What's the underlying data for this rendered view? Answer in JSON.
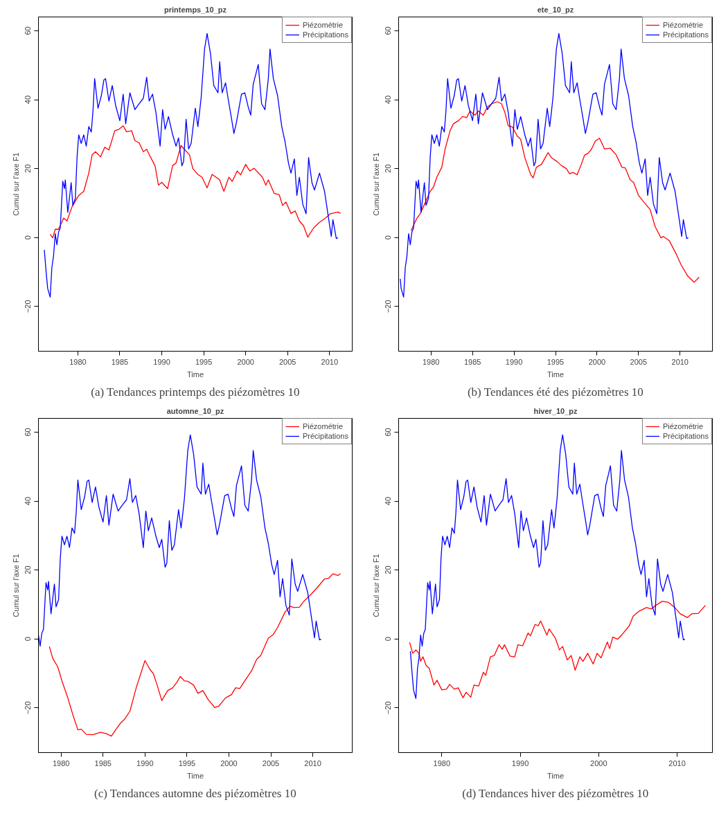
{
  "chart_data": [
    {
      "type": "line",
      "title": "printemps_10_pz",
      "xlabel": "Time",
      "ylabel": "Cumul sur l'axe F1",
      "xlim": [
        1975.3,
        2012.7
      ],
      "ylim": [
        -33,
        64
      ],
      "xticks": [
        1980,
        1985,
        1990,
        1995,
        2000,
        2005,
        2010
      ],
      "yticks": [
        -20,
        0,
        20,
        40,
        60
      ],
      "legend": "top right",
      "annotations": [
        "(a) Tendances printemps des piézomètres 10"
      ],
      "series": [
        {
          "name": "Piézométrie",
          "color": "#ff0000",
          "x": [
            1976.7,
            1977.0,
            1977.3,
            1977.7,
            1978.3,
            1978.7,
            1979.3,
            1980.1,
            1980.7,
            1981.3,
            1981.7,
            1982.1,
            1982.7,
            1983.2,
            1983.7,
            1984.4,
            1984.9,
            1985.4,
            1985.8,
            1986.4,
            1986.8,
            1987.3,
            1987.8,
            1988.2,
            1988.6,
            1989.2,
            1989.6,
            1990.0,
            1990.7,
            1991.3,
            1991.7,
            1992.3,
            1992.8,
            1993.3,
            1993.7,
            1994.3,
            1994.8,
            1995.4,
            1996.0,
            1996.7,
            1996.9,
            1997.4,
            1998.0,
            1998.4,
            1999.0,
            1999.4,
            2000.0,
            2000.5,
            2001.0,
            2001.6,
            2002.0,
            2002.4,
            2002.7,
            2003.4,
            2004.0,
            2004.4,
            2004.8,
            2005.4,
            2005.9,
            2006.4,
            2006.9,
            2007.4,
            2008.1,
            2008.8,
            2009.5,
            2010.1,
            2011.0,
            2011.3
          ],
          "values": [
            0.9,
            -0.1,
            2.4,
            2.4,
            5.6,
            4.8,
            8.9,
            12.2,
            13.4,
            18.7,
            24.0,
            24.9,
            23.4,
            26.2,
            25.4,
            31.0,
            31.4,
            32.4,
            30.7,
            31.0,
            28.1,
            27.5,
            24.9,
            25.6,
            23.6,
            20.8,
            15.2,
            16.0,
            14.2,
            20.9,
            21.6,
            26.7,
            25.3,
            24.0,
            20.0,
            18.3,
            17.5,
            14.4,
            18.3,
            17.1,
            16.7,
            13.4,
            17.5,
            16.3,
            19.3,
            18.2,
            21.2,
            19.3,
            20.1,
            18.5,
            17.5,
            15.2,
            16.7,
            12.8,
            12.4,
            9.3,
            10.3,
            7.0,
            7.7,
            4.8,
            3.4,
            0.1,
            2.8,
            4.4,
            5.6,
            6.9,
            7.4,
            7.0
          ]
        },
        {
          "name": "Précipitations",
          "color": "#0000ff",
          "x": [
            1976.0,
            1976.2,
            1976.4,
            1976.7,
            1976.9,
            1977.1,
            1977.3,
            1977.5,
            1977.7,
            1977.9,
            1978.2,
            1978.4,
            1978.5,
            1978.8,
            1979.2,
            1979.4,
            1979.7,
            1979.9,
            1980.1,
            1980.4,
            1980.7,
            1981.0,
            1981.3,
            1981.6,
            1981.8,
            1982.0,
            1982.4,
            1982.8,
            1983.1,
            1983.3,
            1983.7,
            1984.1,
            1984.5,
            1985.0,
            1985.4,
            1985.7,
            1986.2,
            1986.8,
            1987.3,
            1987.8,
            1988.2,
            1988.5,
            1988.9,
            1989.3,
            1989.8,
            1990.1,
            1990.4,
            1990.8,
            1991.3,
            1991.7,
            1992.0,
            1992.4,
            1992.6,
            1992.9,
            1993.2,
            1993.5,
            1994.0,
            1994.3,
            1994.5,
            1994.7,
            1995.1,
            1995.4,
            1995.8,
            1996.2,
            1996.7,
            1996.9,
            1997.2,
            1997.6,
            1997.9,
            1998.3,
            1998.6,
            1998.9,
            1999.2,
            1999.5,
            1999.9,
            2000.3,
            2000.6,
            2000.9,
            2001.2,
            2001.5,
            2001.9,
            2002.3,
            2002.7,
            2002.9,
            2003.3,
            2003.8,
            2004.3,
            2004.7,
            2005.1,
            2005.4,
            2005.8,
            2006.1,
            2006.4,
            2006.8,
            2007.2,
            2007.5,
            2007.9,
            2008.2,
            2008.8,
            2009.4,
            2009.8,
            2010.2,
            2010.4,
            2010.8,
            2011.0
          ],
          "values": [
            -3.6,
            -9.5,
            -14.8,
            -17.3,
            -8.7,
            -5.4,
            1.1,
            -2.1,
            1.6,
            2.8,
            16.3,
            14.2,
            16.7,
            7.3,
            15.9,
            9.3,
            11.4,
            23.2,
            29.8,
            27.3,
            29.8,
            26.5,
            32.2,
            30.6,
            36.7,
            46.1,
            37.5,
            41.2,
            45.7,
            46.1,
            39.6,
            44.1,
            38.3,
            33.9,
            41.6,
            33.0,
            42.0,
            37.1,
            38.8,
            40.4,
            46.5,
            39.6,
            41.6,
            36.3,
            26.5,
            37.1,
            31.4,
            35.1,
            29.8,
            26.5,
            28.9,
            20.8,
            22.0,
            34.3,
            25.7,
            27.3,
            37.5,
            32.2,
            36.3,
            40.8,
            54.7,
            59.2,
            53.5,
            44.1,
            42.0,
            51.0,
            42.0,
            44.9,
            40.4,
            34.7,
            30.2,
            33.4,
            37.5,
            41.6,
            42.0,
            37.9,
            35.5,
            44.5,
            47.3,
            50.2,
            38.8,
            37.1,
            46.1,
            54.7,
            46.1,
            41.2,
            32.2,
            27.7,
            21.6,
            18.7,
            22.8,
            12.2,
            17.5,
            9.7,
            6.9,
            23.2,
            15.9,
            13.8,
            18.7,
            13.4,
            6.9,
            0.3,
            5.2,
            -0.3,
            -0.1
          ]
        }
      ]
    },
    {
      "type": "line",
      "title": "ete_10_pz",
      "xlabel": "Time",
      "ylabel": "Cumul sur l'axe F1",
      "xlim": [
        1976.1,
        2013.9
      ],
      "ylim": [
        -33,
        64
      ],
      "xticks": [
        1980,
        1985,
        1990,
        1995,
        2000,
        2005,
        2010
      ],
      "yticks": [
        -20,
        0,
        20,
        40,
        60
      ],
      "legend": "top right",
      "annotations": [
        "(b) Tendances été des piézomètres 10"
      ],
      "series": [
        {
          "name": "Piézométrie",
          "color": "#ff0000",
          "x": [
            1977.6,
            1978.3,
            1978.7,
            1979.3,
            1979.9,
            1980.3,
            1980.7,
            1981.3,
            1981.7,
            1982.3,
            1982.7,
            1983.3,
            1983.8,
            1984.3,
            1984.7,
            1985.3,
            1985.7,
            1986.3,
            1986.8,
            1987.3,
            1988.0,
            1988.5,
            1988.9,
            1989.3,
            1989.8,
            1990.4,
            1990.8,
            1991.3,
            1992.0,
            1992.3,
            1992.7,
            1993.3,
            1994.1,
            1994.5,
            1995.2,
            1995.7,
            1996.3,
            1996.7,
            1997.1,
            1997.6,
            1998.1,
            1998.5,
            1998.9,
            1999.3,
            1999.8,
            2000.3,
            2000.9,
            2001.6,
            2002.3,
            2003.0,
            2003.4,
            2004.0,
            2004.4,
            2005.0,
            2005.7,
            2006.4,
            2007.0,
            2007.7,
            2008.0,
            2008.7,
            2009.5,
            2010.1,
            2010.9,
            2011.7,
            2012.3
          ],
          "values": [
            2.0,
            5.6,
            6.9,
            10.1,
            13.4,
            14.6,
            17.5,
            20.4,
            25.7,
            31.0,
            33.0,
            33.9,
            35.1,
            34.8,
            36.7,
            35.5,
            36.7,
            35.5,
            37.9,
            38.8,
            39.4,
            38.8,
            36.3,
            32.4,
            32.1,
            29.4,
            28.5,
            23.2,
            18.3,
            17.3,
            20.4,
            21.2,
            24.6,
            23.2,
            22.0,
            20.9,
            20.0,
            18.5,
            18.9,
            18.2,
            21.2,
            23.9,
            24.4,
            25.5,
            28.0,
            28.8,
            25.7,
            25.9,
            24.0,
            20.4,
            20.2,
            16.7,
            16.0,
            12.2,
            10.1,
            8.1,
            3.2,
            -0.1,
            0.3,
            -0.9,
            -4.6,
            -7.8,
            -11.1,
            -13.0,
            -11.5
          ]
        },
        {
          "name": "Précipitations",
          "color": "#0000ff",
          "x": [
            1976.3,
            1976.4,
            1976.7,
            1976.9,
            1977.1,
            1977.3,
            1977.5,
            1977.7,
            1977.9,
            1978.2,
            1978.4,
            1978.5,
            1978.8,
            1979.2,
            1979.4,
            1979.7,
            1979.9,
            1980.1,
            1980.4,
            1980.7,
            1981.0,
            1981.3,
            1981.6,
            1981.8,
            1982.0,
            1982.4,
            1982.8,
            1983.1,
            1983.3,
            1983.7,
            1984.1,
            1984.5,
            1985.0,
            1985.4,
            1985.7,
            1986.2,
            1986.8,
            1987.3,
            1987.8,
            1988.2,
            1988.5,
            1988.9,
            1989.3,
            1989.8,
            1990.1,
            1990.4,
            1990.8,
            1991.3,
            1991.7,
            1992.0,
            1992.4,
            1992.6,
            1992.9,
            1993.2,
            1993.5,
            1994.0,
            1994.3,
            1994.5,
            1994.7,
            1995.1,
            1995.4,
            1995.8,
            1996.2,
            1996.7,
            1996.9,
            1997.2,
            1997.6,
            1997.9,
            1998.3,
            1998.6,
            1998.9,
            1999.2,
            1999.5,
            1999.9,
            2000.3,
            2000.6,
            2000.9,
            2001.2,
            2001.5,
            2001.9,
            2002.3,
            2002.7,
            2002.9,
            2003.3,
            2003.8,
            2004.3,
            2004.7,
            2005.1,
            2005.4,
            2005.8,
            2006.1,
            2006.4,
            2006.8,
            2007.2,
            2007.5,
            2007.9,
            2008.2,
            2008.8,
            2009.4,
            2009.8,
            2010.2,
            2010.4,
            2010.8,
            2011.0
          ],
          "values": [
            -12.0,
            -14.8,
            -17.3,
            -8.7,
            -5.4,
            1.1,
            -2.1,
            1.6,
            2.8,
            16.3,
            14.2,
            16.7,
            7.3,
            15.9,
            9.3,
            11.4,
            23.2,
            29.8,
            27.3,
            29.8,
            26.5,
            32.2,
            30.6,
            36.7,
            46.1,
            37.5,
            41.2,
            45.7,
            46.1,
            39.6,
            44.1,
            38.3,
            33.9,
            41.6,
            33.0,
            42.0,
            37.1,
            38.8,
            40.4,
            46.5,
            39.6,
            41.6,
            36.3,
            26.5,
            37.1,
            31.4,
            35.1,
            29.8,
            26.5,
            28.9,
            20.8,
            22.0,
            34.3,
            25.7,
            27.3,
            37.5,
            32.2,
            36.3,
            40.8,
            54.7,
            59.2,
            53.5,
            44.1,
            42.0,
            51.0,
            42.0,
            44.9,
            40.4,
            34.7,
            30.2,
            33.4,
            37.5,
            41.6,
            42.0,
            37.9,
            35.5,
            44.5,
            47.3,
            50.2,
            38.8,
            37.1,
            46.1,
            54.7,
            46.1,
            41.2,
            32.2,
            27.7,
            21.6,
            18.7,
            22.8,
            12.2,
            17.5,
            9.7,
            6.9,
            23.2,
            15.9,
            13.8,
            18.7,
            13.4,
            6.9,
            0.3,
            5.2,
            -0.3,
            -0.1
          ]
        }
      ]
    },
    {
      "type": "line",
      "title": "automne_10_pz",
      "xlabel": "Time",
      "ylabel": "Cumul sur l'axe F1",
      "xlim": [
        1977.3,
        2014.7
      ],
      "ylim": [
        -33,
        64
      ],
      "xticks": [
        1980,
        1985,
        1990,
        1995,
        2000,
        2005,
        2010
      ],
      "yticks": [
        -20,
        0,
        20,
        40,
        60
      ],
      "legend": "top right",
      "annotations": [
        "(c) Tendances automne des piézomètres 10"
      ],
      "series": [
        {
          "name": "Piézométrie",
          "color": "#ff0000",
          "x": [
            1978.6,
            1979.0,
            1979.6,
            1980.1,
            1980.8,
            1981.4,
            1982.0,
            1982.4,
            1983.0,
            1983.8,
            1984.7,
            1985.4,
            1986.0,
            1986.5,
            1987.1,
            1987.6,
            1988.2,
            1989.0,
            1990.0,
            1990.6,
            1991.0,
            1991.5,
            1992.0,
            1992.7,
            1993.3,
            1993.8,
            1994.2,
            1994.7,
            1995.1,
            1995.8,
            1996.3,
            1996.9,
            1997.5,
            1998.3,
            1998.8,
            1999.6,
            2000.3,
            2000.8,
            2001.3,
            2002.0,
            2002.7,
            2003.3,
            2003.8,
            2004.7,
            2005.3,
            2005.8,
            2006.7,
            2007.3,
            2007.7,
            2008.4,
            2009.0,
            2009.7,
            2010.5,
            2011.4,
            2011.9,
            2012.4,
            2013.0,
            2013.3
          ],
          "values": [
            -2.2,
            -5.6,
            -8.1,
            -12.2,
            -17.1,
            -22.0,
            -26.4,
            -26.2,
            -27.7,
            -27.8,
            -27.1,
            -27.5,
            -28.2,
            -26.4,
            -24.4,
            -23.2,
            -21.0,
            -13.8,
            -6.3,
            -8.9,
            -10.1,
            -13.8,
            -17.9,
            -15.0,
            -14.2,
            -12.6,
            -10.9,
            -12.2,
            -12.3,
            -13.4,
            -15.8,
            -15.0,
            -17.5,
            -19.9,
            -19.5,
            -17.1,
            -16.2,
            -14.2,
            -14.4,
            -11.8,
            -9.3,
            -6.0,
            -4.8,
            0.2,
            1.3,
            3.3,
            7.8,
            9.5,
            9.1,
            9.2,
            11.1,
            12.7,
            14.8,
            17.4,
            17.6,
            18.9,
            18.4,
            18.9
          ]
        },
        {
          "name": "Précipitations",
          "color": "#0000ff",
          "x": [
            1977.3,
            1977.5,
            1977.7,
            1977.9,
            1978.2,
            1978.4,
            1978.5,
            1978.8,
            1979.2,
            1979.4,
            1979.7,
            1979.9,
            1980.1,
            1980.4,
            1980.7,
            1981.0,
            1981.3,
            1981.6,
            1981.8,
            1982.0,
            1982.4,
            1982.8,
            1983.1,
            1983.3,
            1983.7,
            1984.1,
            1984.5,
            1985.0,
            1985.4,
            1985.7,
            1986.2,
            1986.8,
            1987.3,
            1987.8,
            1988.2,
            1988.5,
            1988.9,
            1989.3,
            1989.8,
            1990.1,
            1990.4,
            1990.8,
            1991.3,
            1991.7,
            1992.0,
            1992.4,
            1992.6,
            1992.9,
            1993.2,
            1993.5,
            1994.0,
            1994.3,
            1994.5,
            1994.7,
            1995.1,
            1995.4,
            1995.8,
            1996.2,
            1996.7,
            1996.9,
            1997.2,
            1997.6,
            1997.9,
            1998.3,
            1998.6,
            1998.9,
            1999.2,
            1999.5,
            1999.9,
            2000.3,
            2000.6,
            2000.9,
            2001.2,
            2001.5,
            2001.9,
            2002.3,
            2002.7,
            2002.9,
            2003.3,
            2003.8,
            2004.3,
            2004.7,
            2005.1,
            2005.4,
            2005.8,
            2006.1,
            2006.4,
            2006.8,
            2007.2,
            2007.5,
            2007.9,
            2008.2,
            2008.8,
            2009.4,
            2009.8,
            2010.2,
            2010.4,
            2010.8,
            2011.0
          ],
          "values": [
            1.1,
            -2.1,
            1.6,
            2.8,
            16.3,
            14.2,
            16.7,
            7.3,
            15.9,
            9.3,
            11.4,
            23.2,
            29.8,
            27.3,
            29.8,
            26.5,
            32.2,
            30.6,
            36.7,
            46.1,
            37.5,
            41.2,
            45.7,
            46.1,
            39.6,
            44.1,
            38.3,
            33.9,
            41.6,
            33.0,
            42.0,
            37.1,
            38.8,
            40.4,
            46.5,
            39.6,
            41.6,
            36.3,
            26.5,
            37.1,
            31.4,
            35.1,
            29.8,
            26.5,
            28.9,
            20.8,
            22.0,
            34.3,
            25.7,
            27.3,
            37.5,
            32.2,
            36.3,
            40.8,
            54.7,
            59.2,
            53.5,
            44.1,
            42.0,
            51.0,
            42.0,
            44.9,
            40.4,
            34.7,
            30.2,
            33.4,
            37.5,
            41.6,
            42.0,
            37.9,
            35.5,
            44.5,
            47.3,
            50.2,
            38.8,
            37.1,
            46.1,
            54.7,
            46.1,
            41.2,
            32.2,
            27.7,
            21.6,
            18.7,
            22.8,
            12.2,
            17.5,
            9.7,
            6.9,
            23.2,
            15.9,
            13.8,
            18.7,
            13.4,
            6.9,
            0.3,
            5.2,
            -0.3,
            -0.1
          ]
        }
      ]
    },
    {
      "type": "line",
      "title": "hiver_10_pz",
      "xlabel": "Time",
      "ylabel": "Cumul sur l'axe F1",
      "xlim": [
        1974.5,
        2014.5
      ],
      "ylim": [
        -33,
        64
      ],
      "xticks": [
        1980,
        1990,
        2000,
        2010
      ],
      "yticks": [
        -20,
        0,
        20,
        40,
        60
      ],
      "legend": "top right",
      "annotations": [
        "(d) Tendances hiver des piézomètres 10"
      ],
      "series": [
        {
          "name": "Piézométrie",
          "color": "#ff0000",
          "x": [
            1975.9,
            1976.3,
            1976.7,
            1977.1,
            1977.3,
            1977.6,
            1978.0,
            1978.4,
            1979.0,
            1979.4,
            1980.0,
            1980.6,
            1981.0,
            1981.6,
            1982.1,
            1982.7,
            1983.1,
            1983.7,
            1984.1,
            1984.7,
            1985.3,
            1985.6,
            1986.2,
            1986.7,
            1987.3,
            1987.7,
            1988.0,
            1988.7,
            1989.3,
            1989.7,
            1990.3,
            1991.0,
            1991.3,
            1991.9,
            1992.3,
            1992.6,
            1993.4,
            1993.7,
            1994.5,
            1995.0,
            1995.4,
            1996.0,
            1996.5,
            1997.0,
            1997.6,
            1998.0,
            1998.6,
            1999.3,
            1999.8,
            2000.3,
            2001.1,
            2001.4,
            2001.8,
            2002.4,
            2003.0,
            2003.9,
            2004.4,
            2005.2,
            2006.1,
            2006.7,
            2007.4,
            2008.1,
            2008.9,
            2009.7,
            2010.4,
            2011.3,
            2011.9,
            2012.7,
            2013.6
          ],
          "values": [
            -1.0,
            -4.2,
            -3.2,
            -4.2,
            -6.5,
            -5.2,
            -7.7,
            -8.5,
            -13.4,
            -12.0,
            -14.8,
            -14.6,
            -13.2,
            -14.6,
            -14.2,
            -17.1,
            -15.5,
            -16.9,
            -13.4,
            -13.7,
            -9.7,
            -10.6,
            -5.2,
            -4.8,
            -1.7,
            -3.0,
            -1.7,
            -5.0,
            -5.2,
            -1.7,
            -2.0,
            1.7,
            0.9,
            4.2,
            3.8,
            5.2,
            1.1,
            2.9,
            0.1,
            -3.2,
            -2.2,
            -6.1,
            -4.8,
            -9.1,
            -5.2,
            -6.5,
            -4.2,
            -7.3,
            -4.2,
            -5.5,
            -0.9,
            -2.8,
            0.5,
            -0.1,
            1.3,
            3.8,
            6.6,
            8.1,
            9.1,
            8.7,
            9.9,
            10.9,
            10.6,
            9.1,
            7.3,
            6.2,
            7.3,
            7.4,
            9.7
          ]
        },
        {
          "name": "Précipitations",
          "color": "#0000ff",
          "x": [
            1976.0,
            1976.2,
            1976.4,
            1976.7,
            1976.9,
            1977.1,
            1977.3,
            1977.5,
            1977.7,
            1977.9,
            1978.2,
            1978.4,
            1978.5,
            1978.8,
            1979.2,
            1979.4,
            1979.7,
            1979.9,
            1980.1,
            1980.4,
            1980.7,
            1981.0,
            1981.3,
            1981.6,
            1981.8,
            1982.0,
            1982.4,
            1982.8,
            1983.1,
            1983.3,
            1983.7,
            1984.1,
            1984.5,
            1985.0,
            1985.4,
            1985.7,
            1986.2,
            1986.8,
            1987.3,
            1987.8,
            1988.2,
            1988.5,
            1988.9,
            1989.3,
            1989.8,
            1990.1,
            1990.4,
            1990.8,
            1991.3,
            1991.7,
            1992.0,
            1992.4,
            1992.6,
            1992.9,
            1993.2,
            1993.5,
            1994.0,
            1994.3,
            1994.5,
            1994.7,
            1995.1,
            1995.4,
            1995.8,
            1996.2,
            1996.7,
            1996.9,
            1997.2,
            1997.6,
            1997.9,
            1998.3,
            1998.6,
            1998.9,
            1999.2,
            1999.5,
            1999.9,
            2000.3,
            2000.6,
            2000.9,
            2001.2,
            2001.5,
            2001.9,
            2002.3,
            2002.7,
            2002.9,
            2003.3,
            2003.8,
            2004.3,
            2004.7,
            2005.1,
            2005.4,
            2005.8,
            2006.1,
            2006.4,
            2006.8,
            2007.2,
            2007.5,
            2007.9,
            2008.2,
            2008.8,
            2009.4,
            2009.8,
            2010.2,
            2010.4,
            2010.8,
            2011.0
          ],
          "values": [
            -3.6,
            -9.5,
            -14.8,
            -17.3,
            -8.7,
            -5.4,
            1.1,
            -2.1,
            1.6,
            2.8,
            16.3,
            14.2,
            16.7,
            7.3,
            15.9,
            9.3,
            11.4,
            23.2,
            29.8,
            27.3,
            29.8,
            26.5,
            32.2,
            30.6,
            36.7,
            46.1,
            37.5,
            41.2,
            45.7,
            46.1,
            39.6,
            44.1,
            38.3,
            33.9,
            41.6,
            33.0,
            42.0,
            37.1,
            38.8,
            40.4,
            46.5,
            39.6,
            41.6,
            36.3,
            26.5,
            37.1,
            31.4,
            35.1,
            29.8,
            26.5,
            28.9,
            20.8,
            22.0,
            34.3,
            25.7,
            27.3,
            37.5,
            32.2,
            36.3,
            40.8,
            54.7,
            59.2,
            53.5,
            44.1,
            42.0,
            51.0,
            42.0,
            44.9,
            40.4,
            34.7,
            30.2,
            33.4,
            37.5,
            41.6,
            42.0,
            37.9,
            35.5,
            44.5,
            47.3,
            50.2,
            38.8,
            37.1,
            46.1,
            54.7,
            46.1,
            41.2,
            32.2,
            27.7,
            21.6,
            18.7,
            22.8,
            12.2,
            17.5,
            9.7,
            6.9,
            23.2,
            15.9,
            13.8,
            18.7,
            13.4,
            6.9,
            0.3,
            5.2,
            -0.3,
            -0.1
          ]
        }
      ]
    }
  ]
}
